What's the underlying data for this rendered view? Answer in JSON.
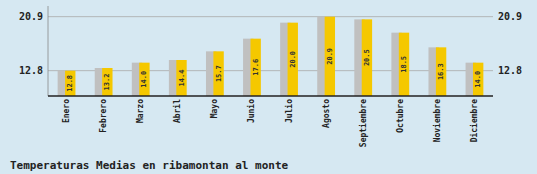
{
  "chart_data": {
    "type": "bar",
    "title": "Temperaturas Medias en ribamontan al monte",
    "categories": [
      "Enero",
      "Febrero",
      "Marzo",
      "Abril",
      "Mayo",
      "Junio",
      "Julio",
      "Agosto",
      "Septiembre",
      "Octubre",
      "Noviembre",
      "Diciembre"
    ],
    "values": [
      12.8,
      13.2,
      14.0,
      14.4,
      15.7,
      17.6,
      20.0,
      20.9,
      20.5,
      18.5,
      16.3,
      14.0
    ],
    "value_labels": [
      "12.8",
      "13.2",
      "14.0",
      "14.4",
      "15.7",
      "17.6",
      "20.0",
      "20.9",
      "20.5",
      "18.5",
      "16.3",
      "14.0"
    ],
    "color": "#F5C800",
    "ylim": [
      9.0,
      22.5
    ],
    "yticks": [
      12.8,
      20.9
    ],
    "grid": true,
    "data_labels": true
  }
}
